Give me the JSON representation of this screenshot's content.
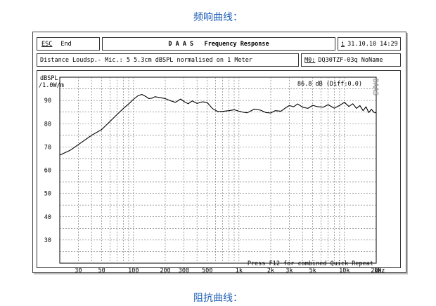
{
  "captions": {
    "top": "频响曲线：",
    "bottom": "阻抗曲线："
  },
  "header": {
    "esc_key": "ESC",
    "esc_label": "End",
    "title": "D A A S   Frequency Response",
    "date_key": "i",
    "date": "31.10.10 14:29",
    "info": "Distance Loudsp.- Mic.: 5 5.3cm dBSPL normalised on 1 Meter",
    "mem_key": "M0:",
    "mem_name": "DQ30TZF-03q NoName"
  },
  "chart_data": {
    "type": "line",
    "title": "",
    "ylabel": "dBSPL /1.0W/m",
    "xlabel_unit": "kHz",
    "xscale": "log",
    "xlim": [
      20,
      20000
    ],
    "ylim": [
      20,
      100
    ],
    "y_ticks": [
      30,
      40,
      50,
      60,
      70,
      80,
      90
    ],
    "x_ticks": [
      {
        "v": 30,
        "label": "30"
      },
      {
        "v": 50,
        "label": "50"
      },
      {
        "v": 100,
        "label": "100"
      },
      {
        "v": 200,
        "label": "200"
      },
      {
        "v": 300,
        "label": "300"
      },
      {
        "v": 500,
        "label": "500"
      },
      {
        "v": 1000,
        "label": "1k"
      },
      {
        "v": 2000,
        "label": "2k"
      },
      {
        "v": 3000,
        "label": "3k"
      },
      {
        "v": 5000,
        "label": "5k"
      },
      {
        "v": 10000,
        "label": "10k"
      },
      {
        "v": 20000,
        "label": "20k"
      }
    ],
    "grid": true,
    "annotation_top": "86.8 dB (Diff:0.0)",
    "annotation_bottom": "Press F12 for combined Quick Repeat",
    "watermark": "DAAS",
    "series": [
      {
        "x": [
          20,
          25,
          30,
          40,
          50,
          60,
          70,
          80,
          90,
          100,
          110,
          120,
          130,
          140,
          150,
          160,
          180,
          200,
          220,
          250,
          280,
          300,
          330,
          360,
          400,
          450,
          500,
          560,
          630,
          700,
          800,
          900,
          1000,
          1100,
          1200,
          1400,
          1600,
          1800,
          2000,
          2200,
          2500,
          2800,
          3000,
          3300,
          3600,
          4000,
          4500,
          5000,
          5600,
          6300,
          7000,
          8000,
          9000,
          10000,
          11000,
          12000,
          13000,
          14000,
          15000,
          16000,
          17000,
          18000,
          19000,
          20000
        ],
        "y": [
          66.5,
          68.5,
          71,
          75,
          77.5,
          81,
          84,
          86.5,
          88.5,
          90.5,
          92,
          92.6,
          91.8,
          90.8,
          91,
          91.6,
          91.2,
          90.8,
          90,
          89.2,
          90.6,
          89.6,
          88.6,
          89.8,
          88.7,
          89.4,
          89.1,
          86.5,
          85.2,
          85.3,
          85.6,
          86,
          85.4,
          84.9,
          84.7,
          86.3,
          85.8,
          84.8,
          84.6,
          85.6,
          85.4,
          87,
          87.8,
          87.3,
          88.5,
          87.1,
          86.6,
          87.9,
          87.3,
          87.1,
          88.2,
          86.7,
          87.9,
          89.2,
          87.4,
          88.6,
          86.6,
          87.8,
          85.6,
          87.3,
          84.8,
          86.2,
          84.9,
          84.6
        ]
      }
    ]
  }
}
